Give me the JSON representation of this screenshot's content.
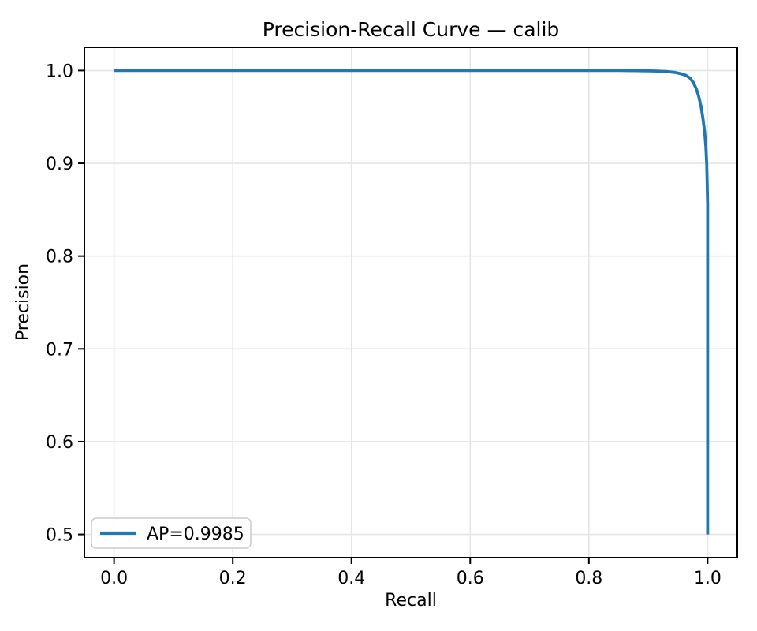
{
  "chart_data": {
    "type": "line",
    "title": "Precision-Recall Curve — calib",
    "xlabel": "Recall",
    "ylabel": "Precision",
    "xlim": [
      -0.05,
      1.05
    ],
    "ylim": [
      0.475,
      1.025
    ],
    "x_tick_values": [
      0.0,
      0.2,
      0.4,
      0.6,
      0.8,
      1.0
    ],
    "x_tick_labels": [
      "0.0",
      "0.2",
      "0.4",
      "0.6",
      "0.8",
      "1.0"
    ],
    "y_tick_values": [
      0.5,
      0.6,
      0.7,
      0.8,
      0.9,
      1.0
    ],
    "y_tick_labels": [
      "0.5",
      "0.6",
      "0.7",
      "0.8",
      "0.9",
      "1.0"
    ],
    "grid": true,
    "legend_position": "lower left",
    "colors": {
      "line": "#1f77b4",
      "grid": "#e5e5e5",
      "spine": "#000000",
      "legend_border": "#cccccc",
      "legend_fill": "rgba(255,255,255,0.8)",
      "background": "#ffffff"
    },
    "series": [
      {
        "name": "AP=0.9985",
        "ap": 0.9985,
        "points": [
          [
            0.0,
            1.0
          ],
          [
            0.1,
            1.0
          ],
          [
            0.2,
            1.0
          ],
          [
            0.3,
            1.0
          ],
          [
            0.4,
            1.0
          ],
          [
            0.5,
            1.0
          ],
          [
            0.6,
            1.0
          ],
          [
            0.7,
            1.0
          ],
          [
            0.8,
            1.0
          ],
          [
            0.85,
            1.0
          ],
          [
            0.88,
            0.9998
          ],
          [
            0.91,
            0.9995
          ],
          [
            0.93,
            0.999
          ],
          [
            0.945,
            0.998
          ],
          [
            0.955,
            0.9965
          ],
          [
            0.963,
            0.995
          ],
          [
            0.97,
            0.992
          ],
          [
            0.976,
            0.987
          ],
          [
            0.981,
            0.98
          ],
          [
            0.985,
            0.972
          ],
          [
            0.989,
            0.961
          ],
          [
            0.992,
            0.949
          ],
          [
            0.995,
            0.934
          ],
          [
            0.997,
            0.918
          ],
          [
            0.9985,
            0.9
          ],
          [
            0.9993,
            0.878
          ],
          [
            1.0,
            0.855
          ],
          [
            1.0,
            0.5
          ]
        ]
      }
    ]
  }
}
